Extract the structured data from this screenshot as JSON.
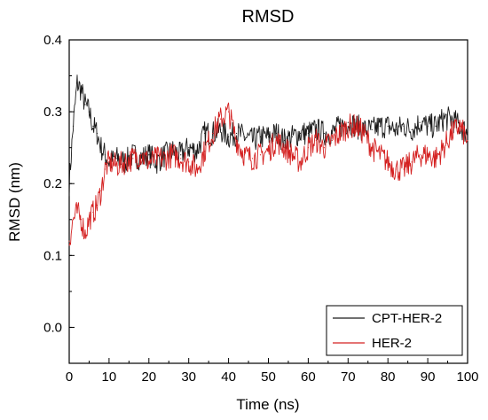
{
  "chart_data": {
    "type": "line",
    "title": "RMSD",
    "xlabel": "Time (ns)",
    "ylabel": "RMSD (nm)",
    "xlim": [
      0,
      100
    ],
    "ylim": [
      -0.05,
      0.4
    ],
    "xticks": [
      "0",
      "10",
      "20",
      "30",
      "40",
      "50",
      "60",
      "70",
      "80",
      "90",
      "100"
    ],
    "yticks": [
      "0.0",
      "0.1",
      "0.2",
      "0.3",
      "0.4"
    ],
    "grid": false,
    "legend": "bottom-right",
    "series": [
      {
        "name": "CPT-HER-2",
        "color": "#1a1a1a",
        "x": [
          0,
          1,
          2,
          3,
          4,
          5,
          6,
          7,
          8,
          9,
          10,
          12,
          14,
          16,
          18,
          20,
          22,
          24,
          26,
          28,
          30,
          32,
          34,
          36,
          38,
          40,
          42,
          44,
          46,
          48,
          50,
          52,
          54,
          56,
          58,
          60,
          62,
          64,
          66,
          68,
          70,
          72,
          74,
          76,
          78,
          80,
          82,
          84,
          86,
          88,
          90,
          92,
          94,
          96,
          98,
          100
        ],
        "values": [
          0.2,
          0.28,
          0.34,
          0.33,
          0.31,
          0.3,
          0.28,
          0.27,
          0.25,
          0.24,
          0.23,
          0.235,
          0.23,
          0.24,
          0.235,
          0.24,
          0.23,
          0.24,
          0.245,
          0.24,
          0.25,
          0.245,
          0.27,
          0.27,
          0.275,
          0.265,
          0.27,
          0.265,
          0.26,
          0.265,
          0.265,
          0.27,
          0.26,
          0.265,
          0.27,
          0.27,
          0.275,
          0.27,
          0.27,
          0.28,
          0.285,
          0.28,
          0.275,
          0.275,
          0.28,
          0.28,
          0.275,
          0.28,
          0.275,
          0.285,
          0.28,
          0.28,
          0.29,
          0.29,
          0.28,
          0.27
        ]
      },
      {
        "name": "HER-2",
        "color": "#d42020",
        "x": [
          0,
          1,
          2,
          3,
          4,
          5,
          6,
          7,
          8,
          9,
          10,
          12,
          14,
          16,
          18,
          20,
          22,
          24,
          26,
          28,
          30,
          32,
          34,
          36,
          38,
          40,
          42,
          44,
          46,
          48,
          50,
          52,
          54,
          56,
          58,
          60,
          62,
          64,
          66,
          68,
          70,
          72,
          74,
          76,
          78,
          80,
          82,
          84,
          86,
          88,
          90,
          92,
          94,
          96,
          98,
          100
        ],
        "values": [
          0.12,
          0.15,
          0.16,
          0.15,
          0.13,
          0.15,
          0.16,
          0.17,
          0.19,
          0.22,
          0.23,
          0.225,
          0.23,
          0.235,
          0.24,
          0.23,
          0.235,
          0.235,
          0.24,
          0.235,
          0.23,
          0.22,
          0.245,
          0.27,
          0.29,
          0.3,
          0.26,
          0.24,
          0.235,
          0.24,
          0.245,
          0.26,
          0.25,
          0.24,
          0.23,
          0.25,
          0.26,
          0.25,
          0.26,
          0.27,
          0.28,
          0.28,
          0.27,
          0.25,
          0.24,
          0.23,
          0.22,
          0.22,
          0.23,
          0.24,
          0.24,
          0.235,
          0.25,
          0.27,
          0.28,
          0.26
        ]
      }
    ]
  }
}
